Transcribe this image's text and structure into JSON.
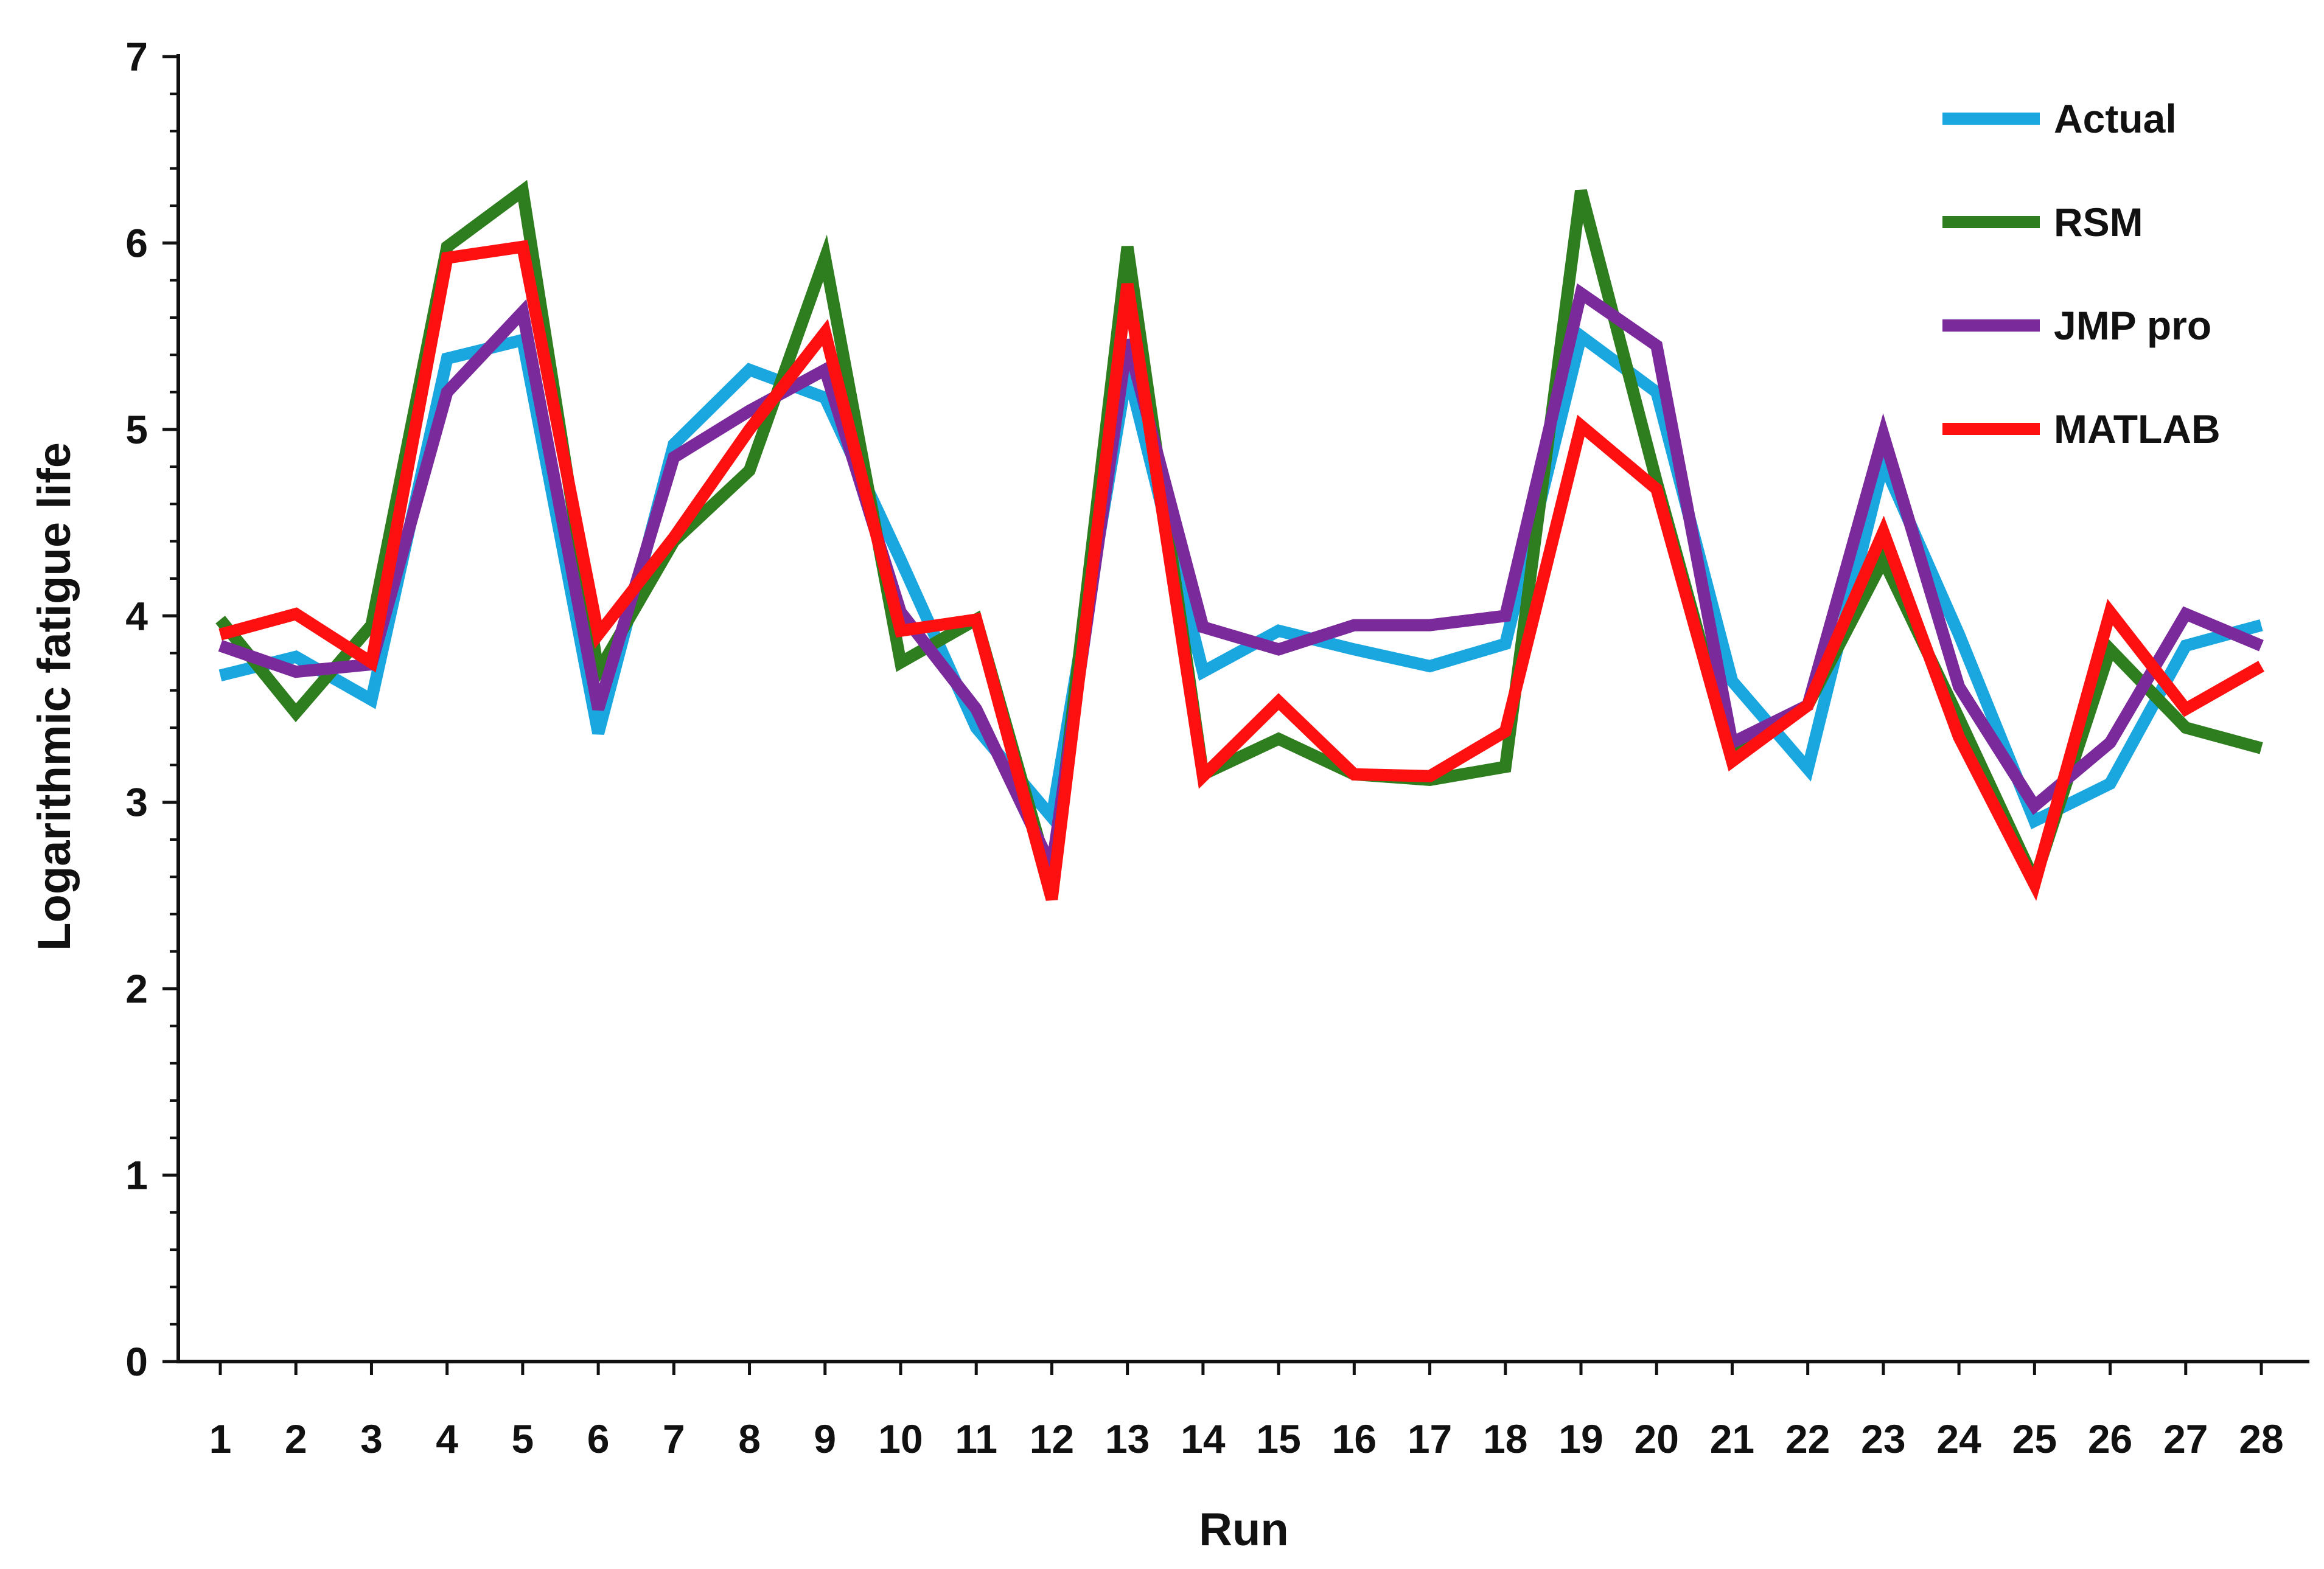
{
  "chart_data": {
    "type": "line",
    "xlabel": "Run",
    "ylabel": "Logarithmic fatigue life",
    "ylim": [
      0,
      7
    ],
    "y_ticks": [
      "0",
      "1",
      "2",
      "3",
      "4",
      "5",
      "6",
      "7"
    ],
    "y_minor_per_major": 5,
    "grid": false,
    "legend_position": "top-right",
    "categories": [
      "1",
      "2",
      "3",
      "4",
      "5",
      "6",
      "7",
      "8",
      "9",
      "10",
      "11",
      "12",
      "13",
      "14",
      "15",
      "16",
      "17",
      "18",
      "19",
      "20",
      "21",
      "22",
      "23",
      "24",
      "25",
      "26",
      "27",
      "28"
    ],
    "series": [
      {
        "name": "Actual",
        "color": "#1AA7E0",
        "values": [
          3.68,
          3.78,
          3.55,
          5.38,
          5.48,
          3.37,
          4.92,
          5.32,
          5.17,
          4.3,
          3.4,
          2.92,
          5.32,
          3.7,
          3.92,
          3.82,
          3.73,
          3.85,
          5.5,
          5.2,
          3.65,
          3.18,
          4.82,
          3.9,
          2.9,
          3.1,
          3.84,
          3.95
        ]
      },
      {
        "name": "RSM",
        "color": "#2E7D1E",
        "values": [
          3.98,
          3.48,
          3.95,
          5.98,
          6.28,
          3.7,
          4.4,
          4.78,
          5.92,
          3.75,
          3.98,
          2.55,
          5.98,
          3.15,
          3.34,
          3.15,
          3.12,
          3.19,
          6.28,
          4.72,
          3.25,
          3.52,
          4.3,
          3.45,
          2.58,
          3.82,
          3.4,
          3.29
        ]
      },
      {
        "name": "JMP pro",
        "color": "#7B2A9B",
        "values": [
          3.84,
          3.7,
          3.74,
          5.2,
          5.63,
          3.5,
          4.85,
          5.1,
          5.32,
          4.02,
          3.5,
          2.65,
          5.48,
          3.94,
          3.82,
          3.95,
          3.95,
          4.0,
          5.73,
          5.45,
          3.32,
          3.52,
          4.97,
          3.62,
          2.98,
          3.32,
          4.01,
          3.84
        ]
      },
      {
        "name": "MATLAB",
        "color": "#FF1010",
        "values": [
          3.9,
          4.01,
          3.75,
          5.92,
          5.98,
          3.9,
          4.42,
          5.0,
          5.52,
          3.92,
          3.98,
          2.48,
          5.78,
          3.14,
          3.54,
          3.15,
          3.14,
          3.38,
          5.02,
          4.68,
          3.22,
          3.52,
          4.45,
          3.35,
          2.56,
          4.02,
          3.5,
          3.73
        ]
      }
    ]
  }
}
